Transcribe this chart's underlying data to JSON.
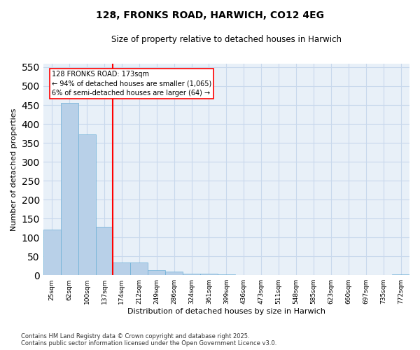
{
  "title": "128, FRONKS ROAD, HARWICH, CO12 4EG",
  "subtitle": "Size of property relative to detached houses in Harwich",
  "xlabel": "Distribution of detached houses by size in Harwich",
  "ylabel": "Number of detached properties",
  "footnote1": "Contains HM Land Registry data © Crown copyright and database right 2025.",
  "footnote2": "Contains public sector information licensed under the Open Government Licence v3.0.",
  "categories": [
    "25sqm",
    "62sqm",
    "100sqm",
    "137sqm",
    "174sqm",
    "212sqm",
    "249sqm",
    "286sqm",
    "324sqm",
    "361sqm",
    "399sqm",
    "436sqm",
    "473sqm",
    "511sqm",
    "548sqm",
    "585sqm",
    "623sqm",
    "660sqm",
    "697sqm",
    "735sqm",
    "772sqm"
  ],
  "values": [
    120,
    456,
    372,
    128,
    33,
    33,
    14,
    9,
    5,
    5,
    2,
    0,
    1,
    0,
    0,
    0,
    0,
    0,
    0,
    0,
    2
  ],
  "bar_color": "#b8d0e8",
  "bar_edge_color": "#6aaed6",
  "grid_color": "#c8d8ec",
  "background_color": "#e8f0f8",
  "annotation_line1": "128 FRONKS ROAD: 173sqm",
  "annotation_line2": "← 94% of detached houses are smaller (1,065)",
  "annotation_line3": "6% of semi-detached houses are larger (64) →",
  "vline_x_index": 3.5,
  "vline_color": "red",
  "ylim": [
    0,
    560
  ],
  "yticks": [
    0,
    50,
    100,
    150,
    200,
    250,
    300,
    350,
    400,
    450,
    500,
    550
  ],
  "fig_width": 6.0,
  "fig_height": 5.0,
  "dpi": 100
}
